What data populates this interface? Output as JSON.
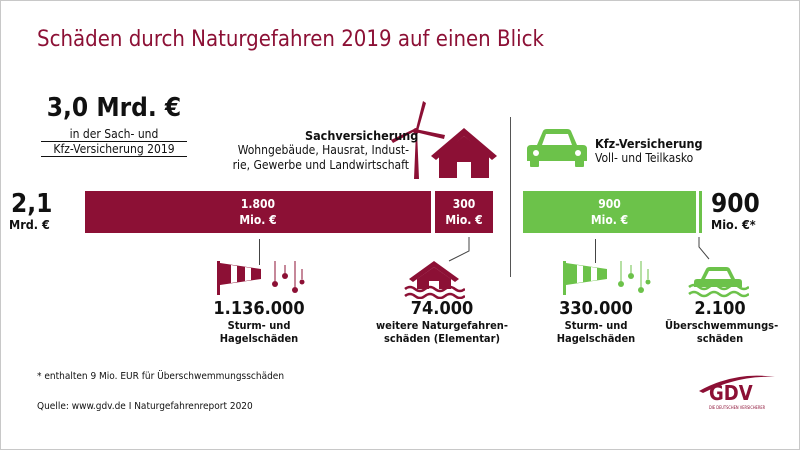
{
  "title": "Schäden durch Naturgefahren 2019 auf einen Blick",
  "total": {
    "value": "3,0 Mrd. €",
    "line1": "in der Sach- und",
    "line2": "Kfz-Versicherung 2019"
  },
  "sach": {
    "title": "Sachversicherung",
    "desc1": "Wohngebäude, Hausrat, Indust-",
    "desc2": "rie, Gewerbe und Landwirtschaft",
    "total_value": "2,1",
    "total_unit": "Mrd. €"
  },
  "kfz": {
    "title": "Kfz-Versicherung",
    "desc": "Voll- und Teilkasko",
    "total_value": "900",
    "total_unit": "Mio. €*"
  },
  "chart_data": {
    "type": "bar",
    "unit": "Mio. €",
    "series": [
      {
        "group": "Sachversicherung",
        "segment": "Sturm und Hagel",
        "value": 1800,
        "label_value": "1.800",
        "label_unit": "Mio. €",
        "color": "#8c1035"
      },
      {
        "group": "Sachversicherung",
        "segment": "Elementar",
        "value": 300,
        "label_value": "300",
        "label_unit": "Mio. €",
        "color": "#8c1035"
      },
      {
        "group": "Kfz-Versicherung",
        "segment": "Sturm und Hagel",
        "value": 900,
        "label_value": "900",
        "label_unit": "Mio. €",
        "color": "#6cc24a"
      },
      {
        "group": "Kfz-Versicherung",
        "segment": "Überschwemmung",
        "value": 9,
        "label_value": "",
        "label_unit": "",
        "color": "#6cc24a"
      }
    ]
  },
  "counts": [
    {
      "value": "1.136.000",
      "label1": "Sturm- und",
      "label2": "Hagelschäden"
    },
    {
      "value": "74.000",
      "label1": "weitere Naturgefahren-",
      "label2": "schäden (Elementar)"
    },
    {
      "value": "330.000",
      "label1": "Sturm- und",
      "label2": "Hagelschäden"
    },
    {
      "value": "2.100",
      "label1": "Überschwemmungs-",
      "label2": "schäden"
    }
  ],
  "footnote": "* enthalten 9 Mio. EUR für Überschwemmungsschäden",
  "source": "Quelle: www.gdv.de I Naturgefahrenreport 2020",
  "logo": {
    "text": "GDV",
    "small": "DIE DEUTSCHEN VERSICHERER"
  },
  "colors": {
    "sach": "#8c1035",
    "kfz": "#6cc24a",
    "title": "#8c1035"
  },
  "icons": [
    "wind-turbine-icon",
    "house-icon",
    "car-icon",
    "windsock-hail-icon",
    "flooded-house-icon",
    "flooded-car-icon"
  ]
}
